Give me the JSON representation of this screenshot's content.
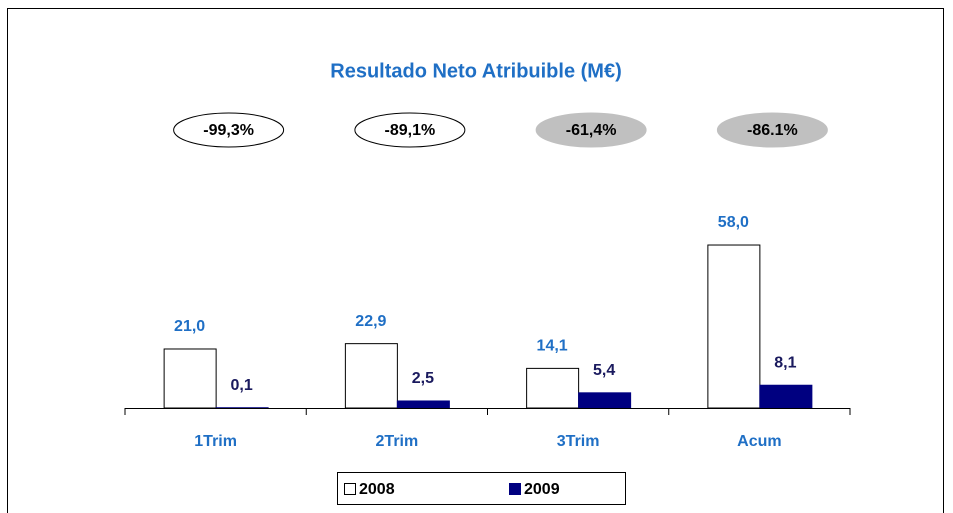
{
  "chart_data": {
    "type": "bar",
    "title": "Resultado Neto Atribuible (M€)",
    "categories": [
      "1Trim",
      "2Trim",
      "3Trim",
      "Acum"
    ],
    "series": [
      {
        "name": "2008",
        "color": "#ffffff",
        "label_color": "#1f6fc5",
        "values": [
          21.0,
          22.9,
          14.1,
          58.0
        ],
        "value_labels": [
          "21,0",
          "22,9",
          "14,1",
          "58,0"
        ]
      },
      {
        "name": "2009",
        "color": "#000080",
        "label_color": "#1a1a5e",
        "values": [
          0.1,
          2.5,
          5.4,
          8.1
        ],
        "value_labels": [
          "0,1",
          "2,5",
          "5,4",
          "8,1"
        ]
      }
    ],
    "annotations": [
      {
        "text": "-99,3%",
        "fill": "#ffffff"
      },
      {
        "text": "-89,1%",
        "fill": "#ffffff"
      },
      {
        "text": "-61,4%",
        "fill": "#c0c0c0"
      },
      {
        "text": "-86.1%",
        "fill": "#c0c0c0"
      }
    ]
  }
}
